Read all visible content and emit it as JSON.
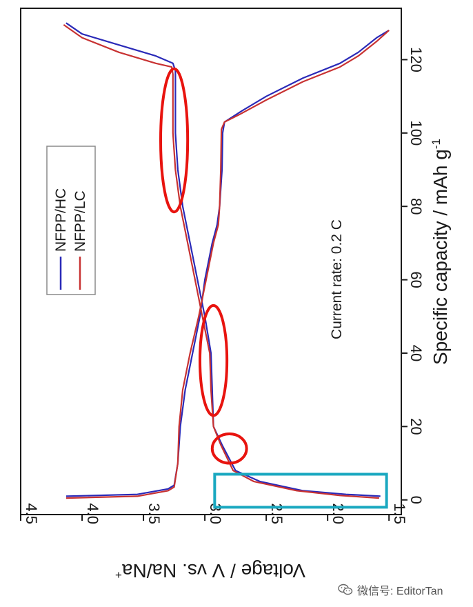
{
  "chart_data": {
    "type": "line",
    "orientation": "rotated-90-cw",
    "title": "",
    "xlabel": "Voltage / V vs. Na/Na",
    "xlabel_superscript": "+",
    "ylabel": "Specific capacity / mAh g",
    "ylabel_superscript": "-1",
    "xlim": [
      4.5,
      1.4
    ],
    "ylim": [
      -4,
      134
    ],
    "voltage_ticks": [
      "4.5",
      "4.0",
      "3.5",
      "3.0",
      "2.5",
      "2.0",
      "1.5"
    ],
    "capacity_ticks": [
      "0",
      "20",
      "40",
      "60",
      "80",
      "100",
      "120"
    ],
    "annotation": "Current rate: 0.2 C",
    "grid": false,
    "legend_position": "left-middle",
    "series": [
      {
        "name": "NFPP/HC",
        "color": "#2a2ab8",
        "charge": [
          [
            4.13,
            1
          ],
          [
            3.55,
            1.5
          ],
          [
            3.3,
            3
          ],
          [
            3.25,
            4
          ],
          [
            3.22,
            10
          ],
          [
            3.2,
            20
          ],
          [
            3.16,
            30
          ],
          [
            3.1,
            40
          ],
          [
            3.04,
            50
          ],
          [
            3.0,
            60
          ],
          [
            2.94,
            70
          ],
          [
            2.9,
            75
          ],
          [
            2.88,
            80
          ],
          [
            2.86,
            90
          ],
          [
            2.855,
            100
          ],
          [
            2.84,
            103
          ],
          [
            2.7,
            106
          ],
          [
            2.5,
            110
          ],
          [
            2.2,
            115
          ],
          [
            1.9,
            119
          ],
          [
            1.75,
            122
          ],
          [
            1.6,
            126
          ],
          [
            1.5,
            128
          ]
        ],
        "discharge": [
          [
            4.13,
            130
          ],
          [
            4.0,
            127
          ],
          [
            3.7,
            124
          ],
          [
            3.4,
            121
          ],
          [
            3.26,
            119
          ],
          [
            3.24,
            117
          ],
          [
            3.24,
            100
          ],
          [
            3.22,
            90
          ],
          [
            3.18,
            80
          ],
          [
            3.12,
            70
          ],
          [
            3.06,
            60
          ],
          [
            3.0,
            50
          ],
          [
            2.95,
            40
          ],
          [
            2.94,
            30
          ],
          [
            2.93,
            20
          ],
          [
            2.86,
            15
          ],
          [
            2.75,
            8
          ],
          [
            2.55,
            5
          ],
          [
            2.2,
            2.5
          ],
          [
            1.85,
            1.5
          ],
          [
            1.57,
            1
          ]
        ]
      },
      {
        "name": "NFPP/LC",
        "color": "#c83232",
        "charge": [
          [
            4.13,
            0.5
          ],
          [
            3.55,
            1
          ],
          [
            3.3,
            2.5
          ],
          [
            3.25,
            3.5
          ],
          [
            3.22,
            10
          ],
          [
            3.21,
            20
          ],
          [
            3.18,
            30
          ],
          [
            3.12,
            40
          ],
          [
            3.05,
            50
          ],
          [
            2.99,
            60
          ],
          [
            2.93,
            70
          ],
          [
            2.89,
            75
          ],
          [
            2.88,
            80
          ],
          [
            2.87,
            90
          ],
          [
            2.865,
            101
          ],
          [
            2.84,
            103
          ],
          [
            2.72,
            105
          ],
          [
            2.5,
            109
          ],
          [
            2.2,
            114
          ],
          [
            1.9,
            118
          ],
          [
            1.75,
            121
          ],
          [
            1.6,
            125
          ],
          [
            1.5,
            128
          ]
        ],
        "discharge": [
          [
            4.15,
            129.5
          ],
          [
            4.0,
            126
          ],
          [
            3.7,
            122
          ],
          [
            3.4,
            119
          ],
          [
            3.27,
            118
          ],
          [
            3.26,
            116
          ],
          [
            3.26,
            100
          ],
          [
            3.24,
            90
          ],
          [
            3.2,
            80
          ],
          [
            3.14,
            70
          ],
          [
            3.08,
            60
          ],
          [
            3.02,
            50
          ],
          [
            2.96,
            40
          ],
          [
            2.95,
            30
          ],
          [
            2.93,
            20
          ],
          [
            2.87,
            15
          ],
          [
            2.77,
            8
          ],
          [
            2.6,
            5
          ],
          [
            2.25,
            2.5
          ],
          [
            1.9,
            1.2
          ],
          [
            1.58,
            0.5
          ]
        ]
      }
    ],
    "highlights": {
      "ellipse_color": "#e8140f",
      "box_color": "#1aa8c0"
    }
  },
  "watermark": {
    "text": "微信号: EditorTan"
  }
}
